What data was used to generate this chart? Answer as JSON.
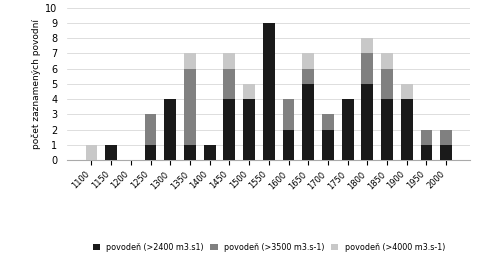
{
  "categories": [
    1100,
    1150,
    1200,
    1250,
    1300,
    1350,
    1400,
    1450,
    1500,
    1550,
    1600,
    1650,
    1700,
    1750,
    1800,
    1850,
    1900,
    1950,
    2000
  ],
  "black": [
    0,
    1,
    0,
    1,
    4,
    1,
    1,
    4,
    4,
    9,
    2,
    5,
    2,
    4,
    5,
    4,
    4,
    1,
    1
  ],
  "dark_gray": [
    0,
    0,
    0,
    2,
    0,
    5,
    0,
    2,
    0,
    0,
    2,
    1,
    1,
    0,
    2,
    2,
    0,
    1,
    1
  ],
  "light_gray": [
    1,
    0,
    0,
    0,
    0,
    1,
    0,
    1,
    1,
    0,
    0,
    1,
    0,
    0,
    1,
    1,
    1,
    0,
    0
  ],
  "color_black": "#1a1a1a",
  "color_dark_gray": "#808080",
  "color_light_gray": "#c8c8c8",
  "ylabel": "počet zaznamených povodní",
  "ylim": [
    0,
    10
  ],
  "yticks": [
    0,
    1,
    2,
    3,
    4,
    5,
    6,
    7,
    8,
    9,
    10
  ],
  "legend_labels": [
    "povodeň (>2400 m3.s1)",
    "povodeň (>3500 m3.s-1)",
    "povodeň (>4000 m3.s-1)"
  ],
  "background_color": "#ffffff",
  "bar_width": 0.6
}
